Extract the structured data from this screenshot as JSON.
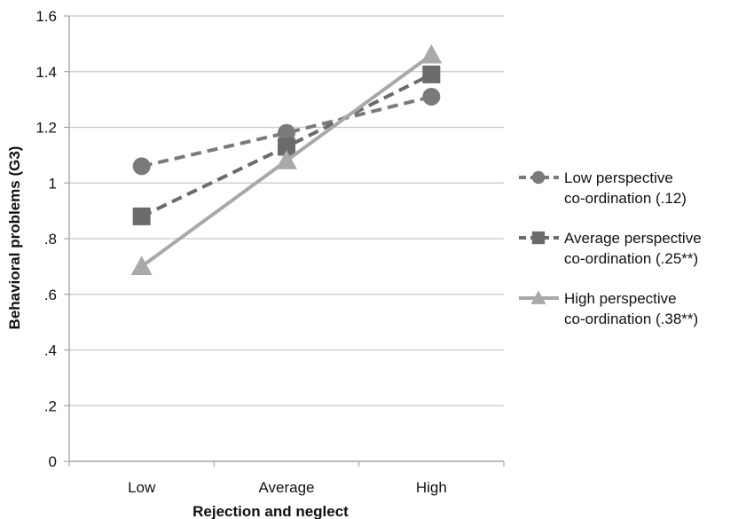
{
  "chart_data": {
    "type": "line",
    "xlabel": "Rejection and neglect",
    "ylabel": "Behavioral problems (G3)",
    "categories": [
      "Low",
      "Average",
      "High"
    ],
    "ylim": [
      0,
      1.6
    ],
    "yticks": [
      0,
      0.2,
      0.4,
      0.6,
      0.8,
      1.0,
      1.2,
      1.4,
      1.6
    ],
    "ytick_labels": [
      "0",
      ".2",
      ".4",
      ".6",
      ".8",
      "1",
      "1.2",
      "1.4",
      "1.6"
    ],
    "grid": true,
    "legend_position": "right",
    "series": [
      {
        "legend_line1": "Low perspective",
        "legend_line2": "co-ordination (.12)",
        "values": [
          1.06,
          1.18,
          1.31
        ],
        "marker": "circle",
        "dash": true,
        "color": "#7a7a7a"
      },
      {
        "legend_line1": "Average perspective",
        "legend_line2": "co-ordination (.25**)",
        "values": [
          0.88,
          1.13,
          1.39
        ],
        "marker": "square",
        "dash": true,
        "color": "#6b6b6b"
      },
      {
        "legend_line1": "High perspective",
        "legend_line2": "co-ordination (.38**)",
        "values": [
          0.7,
          1.08,
          1.46
        ],
        "marker": "triangle",
        "dash": false,
        "color": "#a9a9a9"
      }
    ]
  }
}
